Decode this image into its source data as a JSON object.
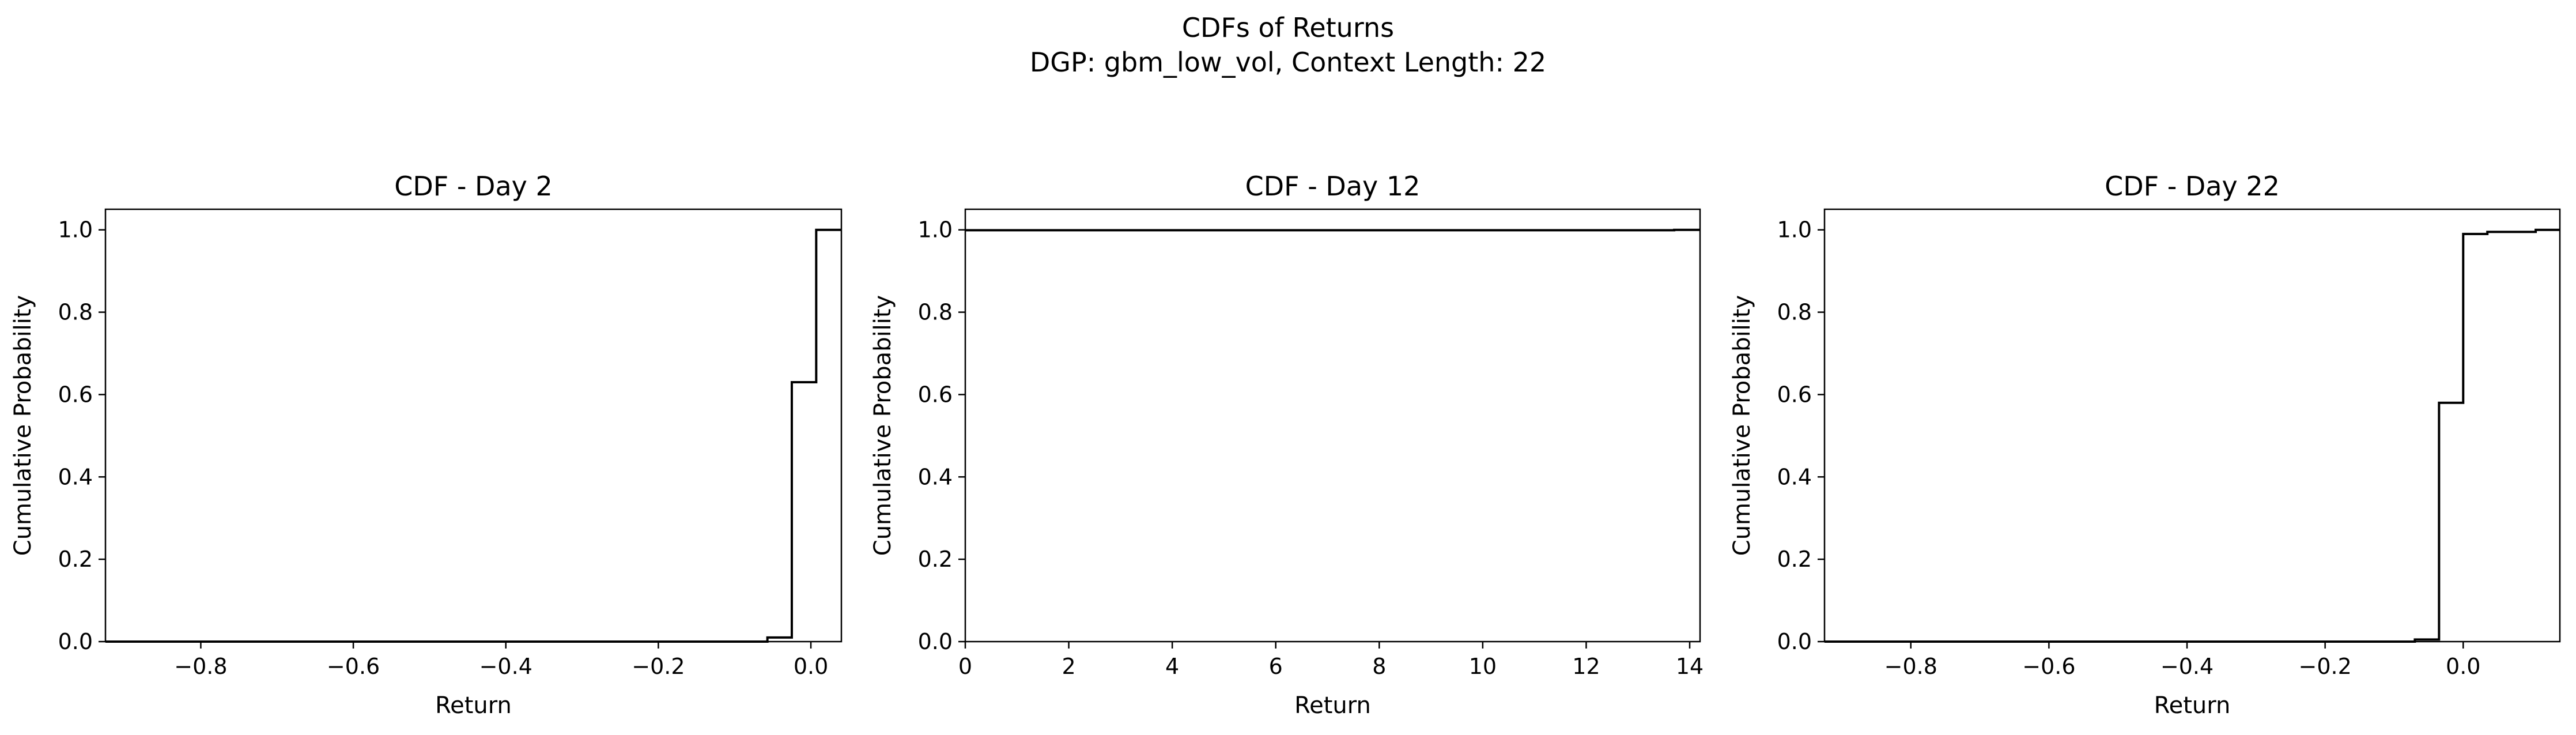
{
  "figure": {
    "title_line1": "CDFs of Returns",
    "title_line2": "DGP: gbm_low_vol, Context Length: 22"
  },
  "chart_data": [
    {
      "type": "line",
      "drawstyle": "steps-post",
      "title": "CDF - Day 2",
      "xlabel": "Return",
      "ylabel": "Cumulative Probability",
      "xlim": [
        -0.925,
        0.04
      ],
      "ylim": [
        0,
        1.05
      ],
      "xticks": [
        -0.8,
        -0.6,
        -0.4,
        -0.2,
        0.0
      ],
      "xtick_labels": [
        "−0.8",
        "−0.6",
        "−0.4",
        "−0.2",
        "0.0"
      ],
      "yticks": [
        0.0,
        0.2,
        0.4,
        0.6,
        0.8,
        1.0
      ],
      "ytick_labels": [
        "0.0",
        "0.2",
        "0.4",
        "0.6",
        "0.8",
        "1.0"
      ],
      "grid": false,
      "color": "#000000",
      "x": [
        -0.925,
        -0.057,
        -0.025,
        0.007,
        0.04
      ],
      "y": [
        0.0,
        0.01,
        0.63,
        1.0,
        1.0
      ]
    },
    {
      "type": "line",
      "drawstyle": "steps-post",
      "title": "CDF - Day 12",
      "xlabel": "Return",
      "ylabel": "Cumulative Probability",
      "xlim": [
        0,
        14.2
      ],
      "ylim": [
        0,
        1.05
      ],
      "xticks": [
        0,
        2,
        4,
        6,
        8,
        10,
        12,
        14
      ],
      "xtick_labels": [
        "0",
        "2",
        "4",
        "6",
        "8",
        "10",
        "12",
        "14"
      ],
      "yticks": [
        0.0,
        0.2,
        0.4,
        0.6,
        0.8,
        1.0
      ],
      "ytick_labels": [
        "0.0",
        "0.2",
        "0.4",
        "0.6",
        "0.8",
        "1.0"
      ],
      "grid": false,
      "color": "#000000",
      "x": [
        0,
        13.7,
        14.2
      ],
      "y": [
        0.999,
        1.0,
        1.0
      ]
    },
    {
      "type": "line",
      "drawstyle": "steps-post",
      "title": "CDF - Day 22",
      "xlabel": "Return",
      "ylabel": "Cumulative Probability",
      "xlim": [
        -0.925,
        0.14
      ],
      "ylim": [
        0,
        1.05
      ],
      "xticks": [
        -0.8,
        -0.6,
        -0.4,
        -0.2,
        0.0
      ],
      "xtick_labels": [
        "−0.8",
        "−0.6",
        "−0.4",
        "−0.2",
        "0.0"
      ],
      "yticks": [
        0.0,
        0.2,
        0.4,
        0.6,
        0.8,
        1.0
      ],
      "ytick_labels": [
        "0.0",
        "0.2",
        "0.4",
        "0.6",
        "0.8",
        "1.0"
      ],
      "grid": false,
      "color": "#000000",
      "x": [
        -0.925,
        -0.07,
        -0.035,
        0.0,
        0.035,
        0.105,
        0.14
      ],
      "y": [
        0.0,
        0.005,
        0.58,
        0.99,
        0.995,
        1.0,
        1.0
      ]
    }
  ]
}
